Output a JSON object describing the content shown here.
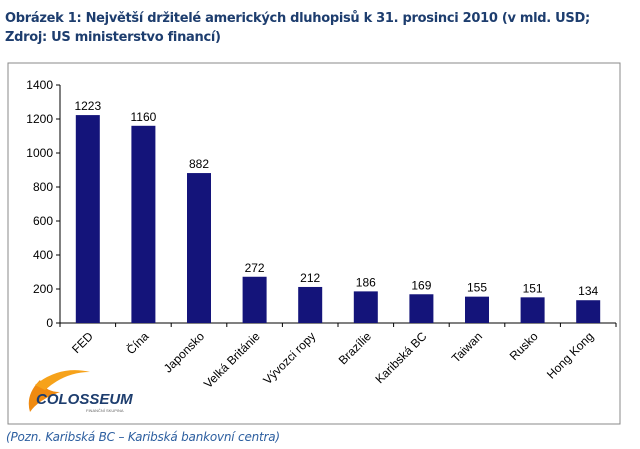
{
  "title": "Obrázek 1: Největší držitelé amerických dluhopisů k 31. prosinci 2010 (v mld. USD; Zdroj: US ministerstvo financí)",
  "note": "(Pozn. Karibská BC – Karibská bankovní centra)",
  "logo": {
    "text": "COLOSSEUM",
    "subtext": "FINANČNÍ SKUPINA"
  },
  "colors": {
    "bar": "#14147a",
    "title": "#1d3d6e",
    "note": "#2d5fa0"
  },
  "chart_data": {
    "type": "bar",
    "title": "",
    "xlabel": "",
    "ylabel": "",
    "categories": [
      "FED",
      "Čína",
      "Japonsko",
      "Velká Británie",
      "Vývozci ropy",
      "Brazílie",
      "Karibská BC",
      "Taiwan",
      "Rusko",
      "Hong Kong"
    ],
    "values": [
      1223,
      1160,
      882,
      272,
      212,
      186,
      169,
      155,
      151,
      134
    ],
    "ylim": [
      0,
      1400
    ],
    "yticks": [
      0,
      200,
      400,
      600,
      800,
      1000,
      1200,
      1400
    ],
    "grid": false,
    "legend": "none"
  }
}
